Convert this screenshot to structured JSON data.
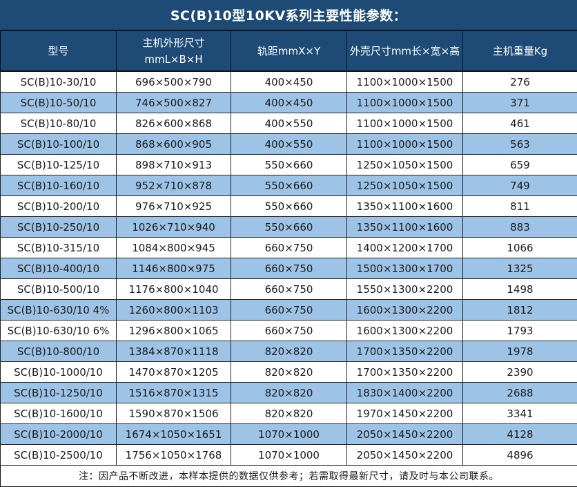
{
  "title": "SC(B)10型10KV系列主要性能参数：",
  "colors": {
    "header_navy": "#1d4b76",
    "row_alt_blue": "#9dc3e6",
    "border_dark": "#111111",
    "header_text": "#ffffff",
    "body_text": "#1a1a1a"
  },
  "table": {
    "headers": {
      "model": "型号",
      "main_dim_line1": "主机外形尺寸",
      "main_dim_line2": "mmL×B×H",
      "rail": "轨距mmX×Y",
      "shell": "外壳尺寸mm长×宽×高",
      "weight": "主机重量Kg"
    },
    "rows": [
      [
        "SC(B)10-30/10",
        "696×500×790",
        "400×450",
        "1100×1000×1500",
        "276"
      ],
      [
        "SC(B)10-50/10",
        "746×500×827",
        "400×450",
        "1100×1000×1500",
        "371"
      ],
      [
        "SC(B)10-80/10",
        "826×600×868",
        "400×550",
        "1100×1000×1500",
        "461"
      ],
      [
        "SC(B)10-100/10",
        "868×600×905",
        "400×550",
        "1100×1000×1500",
        "563"
      ],
      [
        "SC(B)10-125/10",
        "898×710×913",
        "550×660",
        "1250×1050×1500",
        "659"
      ],
      [
        "SC(B)10-160/10",
        "952×710×878",
        "550×660",
        "1250×1050×1500",
        "749"
      ],
      [
        "SC(B)10-200/10",
        "976×710×925",
        "550×660",
        "1350×1100×1600",
        "811"
      ],
      [
        "SC(B)10-250/10",
        "1026×710×940",
        "550×660",
        "1350×1100×1600",
        "883"
      ],
      [
        "SC(B)10-315/10",
        "1084×800×945",
        "660×750",
        "1400×1200×1700",
        "1066"
      ],
      [
        "SC(B)10-400/10",
        "1146×800×975",
        "660×750",
        "1500×1300×1700",
        "1325"
      ],
      [
        "SC(B)10-500/10",
        "1176×800×1040",
        "660×750",
        "1550×1300×2200",
        "1498"
      ],
      [
        "SC(B)10-630/10 4%",
        "1260×800×1103",
        "660×750",
        "1600×1300×2200",
        "1812"
      ],
      [
        "SC(B)10-630/10 6%",
        "1296×800×1065",
        "660×750",
        "1600×1300×2200",
        "1793"
      ],
      [
        "SC(B)10-800/10",
        "1384×870×1118",
        "820×820",
        "1700×1350×2200",
        "1978"
      ],
      [
        "SC(B)10-1000/10",
        "1470×870×1205",
        "820×820",
        "1700×1350×2200",
        "2390"
      ],
      [
        "SC(B)10-1250/10",
        "1516×870×1315",
        "820×820",
        "1830×1400×2200",
        "2688"
      ],
      [
        "SC(B)10-1600/10",
        "1590×870×1506",
        "820×820",
        "1970×1450×2200",
        "3341"
      ],
      [
        "SC(B)10-2000/10",
        "1674×1050×1651",
        "1070×1000",
        "2050×1450×2200",
        "4128"
      ],
      [
        "SC(B)10-2500/10",
        "1756×1050×1768",
        "1070×1000",
        "2050×1450×2200",
        "4896"
      ]
    ],
    "cell_names": [
      "model-cell",
      "main-dimensions-cell",
      "rail-gauge-cell",
      "shell-dimensions-cell",
      "weight-cell"
    ]
  },
  "footer_note": "注：因产品不断改进，本样本提供的数据仅供参考；若需取得最新尺寸，请及时与本公司联系。"
}
